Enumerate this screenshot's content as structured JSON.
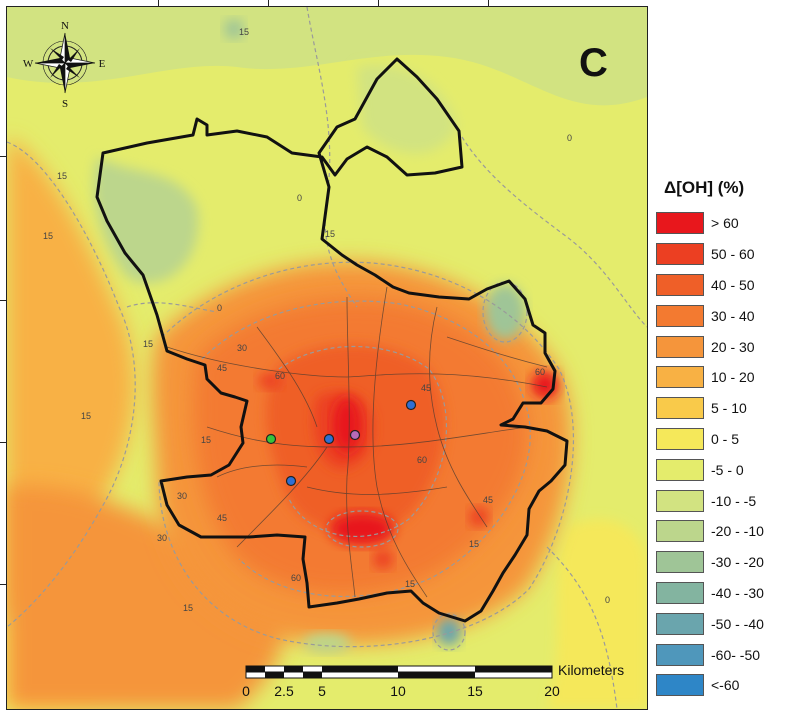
{
  "panel": {
    "letter": "C"
  },
  "compass": {
    "north": "N",
    "south": "S",
    "east": "E",
    "west": "W"
  },
  "legend": {
    "title": "Δ[OH] (%)",
    "classes": [
      {
        "label": "> 60",
        "color": "#e8171c"
      },
      {
        "label": "50 - 60",
        "color": "#ec3f22"
      },
      {
        "label": "40 - 50",
        "color": "#ef5f28"
      },
      {
        "label": "30 - 40",
        "color": "#f37a30"
      },
      {
        "label": "20 - 30",
        "color": "#f5953b"
      },
      {
        "label": "10 - 20",
        "color": "#f8b144"
      },
      {
        "label": "5 - 10",
        "color": "#f9ca4a"
      },
      {
        "label": "0 - 5",
        "color": "#f5e85a"
      },
      {
        "label": "-5 - 0",
        "color": "#e4ec6c"
      },
      {
        "label": "-10 - -5",
        "color": "#d2e381"
      },
      {
        "label": "-20 - -10",
        "color": "#bcd68c"
      },
      {
        "label": "-30 - -20",
        "color": "#9fc597"
      },
      {
        "label": "-40 - -30",
        "color": "#83b4a0"
      },
      {
        "label": "-50 - -40",
        "color": "#6aa5ad"
      },
      {
        "label": "-60- -50",
        "color": "#4f97bb"
      },
      {
        "label": "<-60",
        "color": "#2e86c7"
      }
    ]
  },
  "scale_bar": {
    "unit": "Kilometers",
    "tick_labels": [
      "0",
      "2.5",
      "5",
      "10",
      "15",
      "20"
    ]
  },
  "contour_labels": [
    "0",
    "15",
    "30",
    "45",
    "60"
  ],
  "stations": [
    {
      "color": "#37c43b"
    },
    {
      "color": "#2f6fd4"
    },
    {
      "color": "#2f6fd4"
    },
    {
      "color": "#2f6fd4"
    },
    {
      "color": "#b86ab8"
    }
  ]
}
